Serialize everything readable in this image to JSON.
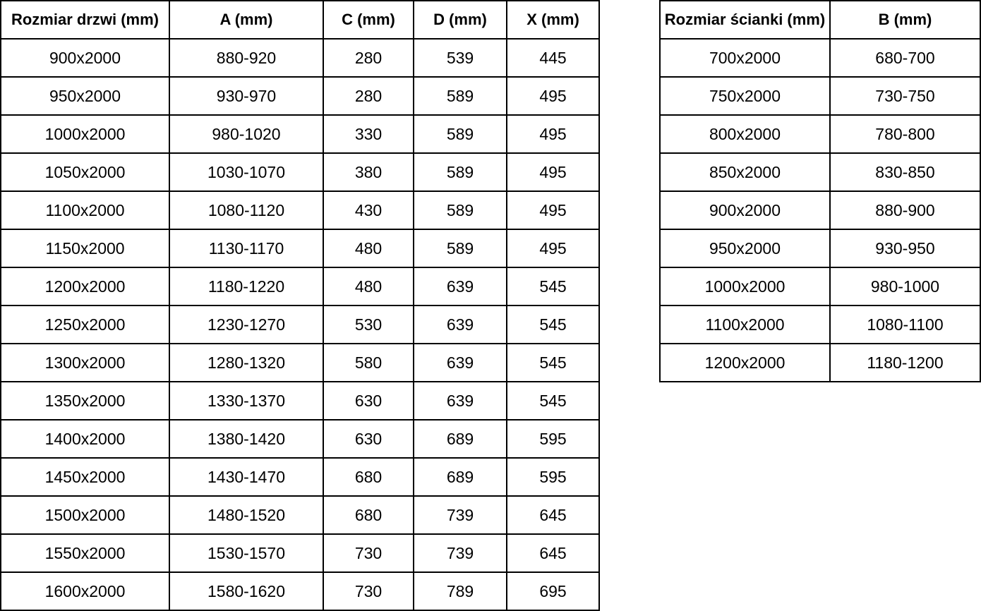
{
  "chart_data": [
    {
      "type": "table",
      "title": "Rozmiar drzwi (mm)",
      "columns": [
        "Rozmiar drzwi (mm)",
        "A (mm)",
        "C (mm)",
        "D (mm)",
        "X (mm)"
      ],
      "rows": [
        [
          "900x2000",
          "880-920",
          "280",
          "539",
          "445"
        ],
        [
          "950x2000",
          "930-970",
          "280",
          "589",
          "495"
        ],
        [
          "1000x2000",
          "980-1020",
          "330",
          "589",
          "495"
        ],
        [
          "1050x2000",
          "1030-1070",
          "380",
          "589",
          "495"
        ],
        [
          "1100x2000",
          "1080-1120",
          "430",
          "589",
          "495"
        ],
        [
          "1150x2000",
          "1130-1170",
          "480",
          "589",
          "495"
        ],
        [
          "1200x2000",
          "1180-1220",
          "480",
          "639",
          "545"
        ],
        [
          "1250x2000",
          "1230-1270",
          "530",
          "639",
          "545"
        ],
        [
          "1300x2000",
          "1280-1320",
          "580",
          "639",
          "545"
        ],
        [
          "1350x2000",
          "1330-1370",
          "630",
          "639",
          "545"
        ],
        [
          "1400x2000",
          "1380-1420",
          "630",
          "689",
          "595"
        ],
        [
          "1450x2000",
          "1430-1470",
          "680",
          "689",
          "595"
        ],
        [
          "1500x2000",
          "1480-1520",
          "680",
          "739",
          "645"
        ],
        [
          "1550x2000",
          "1530-1570",
          "730",
          "739",
          "645"
        ],
        [
          "1600x2000",
          "1580-1620",
          "730",
          "789",
          "695"
        ]
      ]
    },
    {
      "type": "table",
      "title": "Rozmiar ścianki (mm)",
      "columns": [
        "Rozmiar ścianki (mm)",
        "B (mm)"
      ],
      "rows": [
        [
          "700x2000",
          "680-700"
        ],
        [
          "750x2000",
          "730-750"
        ],
        [
          "800x2000",
          "780-800"
        ],
        [
          "850x2000",
          "830-850"
        ],
        [
          "900x2000",
          "880-900"
        ],
        [
          "950x2000",
          "930-950"
        ],
        [
          "1000x2000",
          "980-1000"
        ],
        [
          "1100x2000",
          "1080-1100"
        ],
        [
          "1200x2000",
          "1180-1200"
        ]
      ]
    }
  ],
  "colors": {
    "table_border": "#000000",
    "text": "#000000",
    "background": "#ffffff"
  }
}
